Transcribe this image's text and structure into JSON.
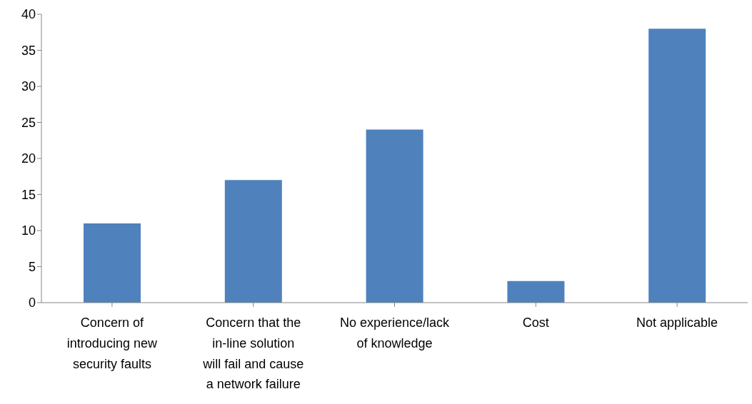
{
  "chart_data": {
    "type": "bar",
    "categories": [
      "Concern of introducing new security faults",
      "Concern that the in-line solution will fail and cause a network failure",
      "No experience/lack of knowledge",
      "Cost",
      "Not applicable"
    ],
    "values": [
      11,
      17,
      24,
      3,
      38
    ],
    "color": "#4f81bd",
    "ylim": [
      0,
      40
    ],
    "yticks": [
      0,
      5,
      10,
      15,
      20,
      25,
      30,
      35,
      40
    ],
    "grid": false,
    "legend": false
  }
}
